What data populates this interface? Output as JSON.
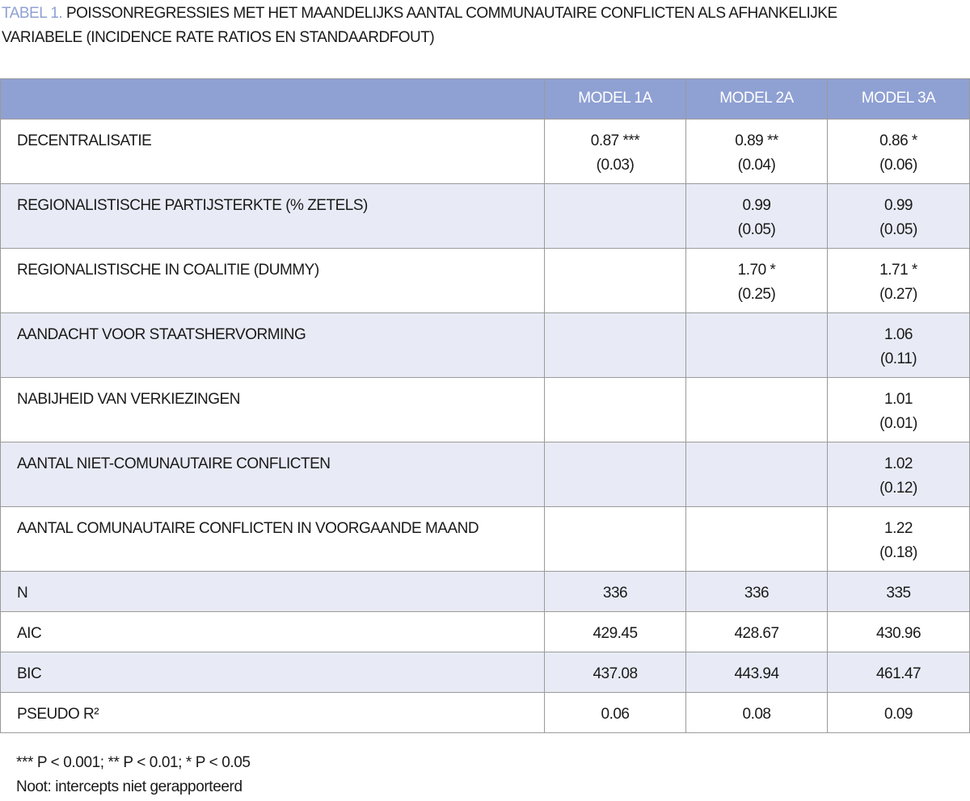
{
  "header": {
    "label": "TABEL 1.",
    "title": "POISSONREGRESSIES MET HET MAANDELIJKS AANTAL COMMUNAUTAIRE CONFLICTEN ALS AFHANKELIJKE VARIABELE (INCIDENCE RATE RATIOS EN STANDAARDFOUT)"
  },
  "table": {
    "columns": [
      "MODEL 1A",
      "MODEL 2A",
      "MODEL 3A"
    ],
    "rows": [
      {
        "label": "DECENTRALISATIE",
        "cells": [
          [
            "0.87 ***",
            "(0.03)"
          ],
          [
            "0.89 **",
            "(0.04)"
          ],
          [
            "0.86 *",
            "(0.06)"
          ]
        ]
      },
      {
        "label": "REGIONALISTISCHE PARTIJSTERKTE (% ZETELS)",
        "cells": [
          [],
          [
            "0.99",
            "(0.05)"
          ],
          [
            "0.99",
            "(0.05)"
          ]
        ]
      },
      {
        "label": "REGIONALISTISCHE IN COALITIE (DUMMY)",
        "cells": [
          [],
          [
            "1.70 *",
            "(0.25)"
          ],
          [
            "1.71 *",
            "(0.27)"
          ]
        ]
      },
      {
        "label": "AANDACHT VOOR STAATSHERVORMING",
        "cells": [
          [],
          [],
          [
            "1.06",
            "(0.11)"
          ]
        ]
      },
      {
        "label": "NABIJHEID VAN VERKIEZINGEN",
        "cells": [
          [],
          [],
          [
            "1.01",
            "(0.01)"
          ]
        ]
      },
      {
        "label": "AANTAL NIET-COMUNAUTAIRE CONFLICTEN",
        "cells": [
          [],
          [],
          [
            "1.02",
            "(0.12)"
          ]
        ]
      },
      {
        "label": "AANTAL COMUNAUTAIRE CONFLICTEN IN VOORGAANDE MAAND",
        "cells": [
          [],
          [],
          [
            "1.22",
            "(0.18)"
          ]
        ]
      },
      {
        "label": "N",
        "cells": [
          [
            "336"
          ],
          [
            "336"
          ],
          [
            "335"
          ]
        ]
      },
      {
        "label": "AIC",
        "cells": [
          [
            "429.45"
          ],
          [
            "428.67"
          ],
          [
            "430.96"
          ]
        ]
      },
      {
        "label": "BIC",
        "cells": [
          [
            "437.08"
          ],
          [
            "443.94"
          ],
          [
            "461.47"
          ]
        ]
      },
      {
        "label": "PSEUDO R²",
        "cells": [
          [
            "0.06"
          ],
          [
            "0.08"
          ],
          [
            "0.09"
          ]
        ]
      }
    ]
  },
  "footnotes": [
    "*** P < 0.001; ** P < 0.01; * P < 0.05",
    "Noot: intercepts niet gerapporteerd"
  ]
}
